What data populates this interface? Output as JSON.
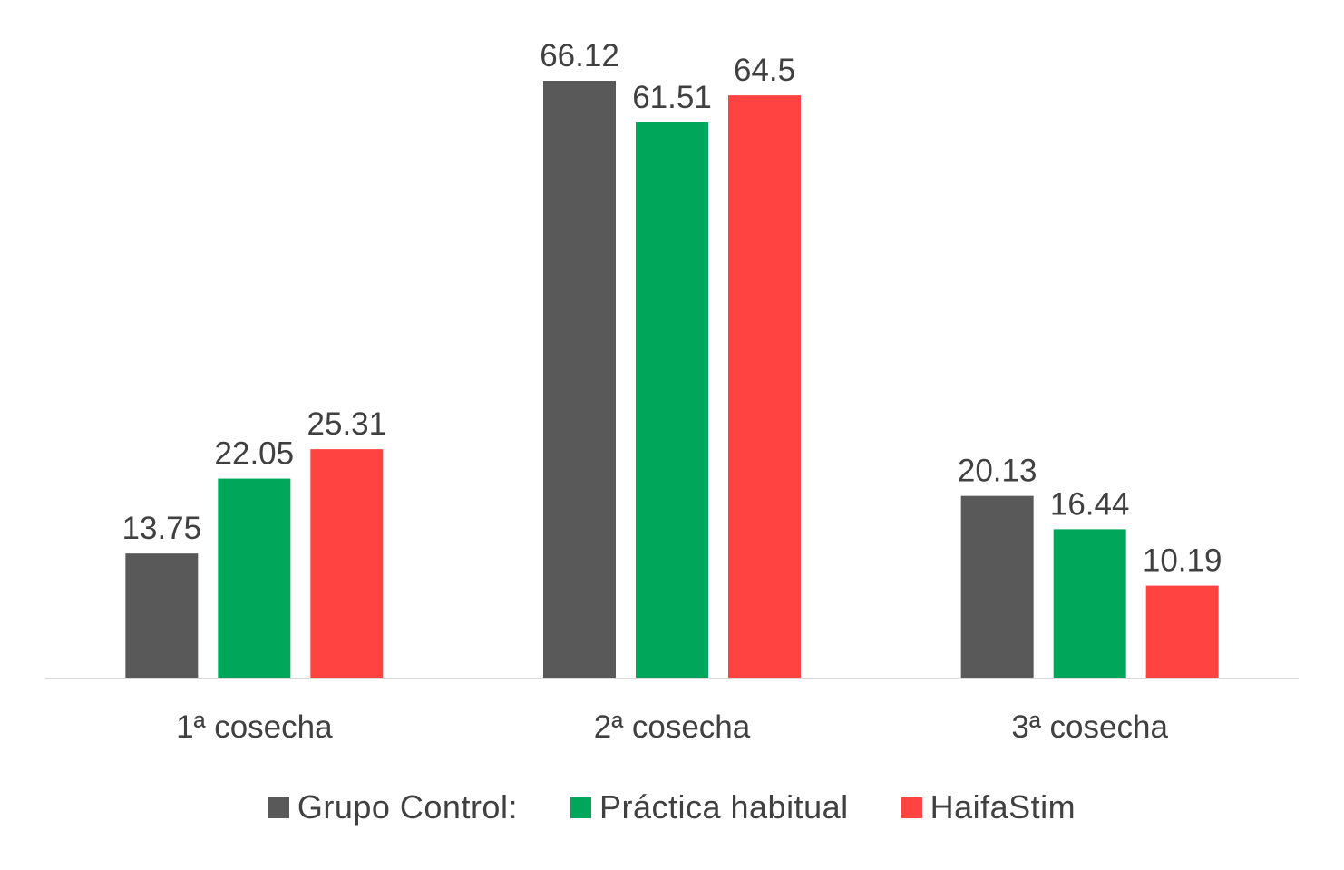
{
  "chart_data": {
    "type": "bar",
    "categories": [
      "1ª cosecha",
      "2ª cosecha",
      "3ª cosecha"
    ],
    "series": [
      {
        "name": "Grupo Control:",
        "color": "#595959",
        "values": [
          13.75,
          66.12,
          20.13
        ]
      },
      {
        "name": "Práctica habitual",
        "color": "#00A65A",
        "values": [
          22.05,
          61.51,
          16.44
        ]
      },
      {
        "name": "HaifaStim",
        "color": "#FF4341",
        "values": [
          25.31,
          64.5,
          10.19
        ]
      }
    ],
    "data_labels": true,
    "ylim": [
      0,
      66.12
    ],
    "y_axis_visible": false,
    "grid": false,
    "legend_position": "bottom",
    "axis_line_color": "#d9d9d9"
  }
}
